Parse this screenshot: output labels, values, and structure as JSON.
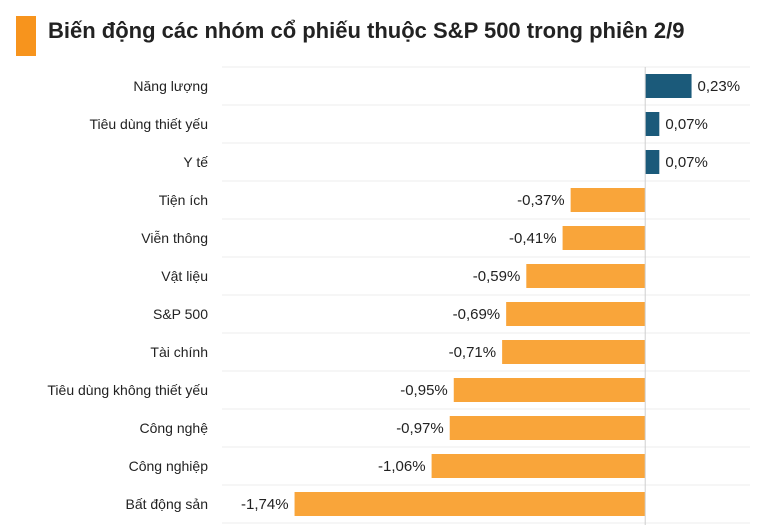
{
  "title": "Biến động các nhóm cổ phiếu thuộc S&P 500 trong phiên 2/9",
  "colors": {
    "accent": "#f7941d",
    "positive": "#1b5a7a",
    "negative": "#f9a53a"
  },
  "chart_data": {
    "type": "bar",
    "orientation": "horizontal",
    "title": "Biến động các nhóm cổ phiếu thuộc S&P 500 trong phiên 2/9",
    "xlabel": "",
    "ylabel": "",
    "grid": true,
    "categories": [
      "Năng lượng",
      "Tiêu dùng thiết yếu",
      "Y tế",
      "Tiện ích",
      "Viễn thông",
      "Vật liệu",
      "S&P 500",
      "Tài chính",
      "Tiêu dùng không thiết yếu",
      "Công nghệ",
      "Công nghiệp",
      "Bất động sản"
    ],
    "values": [
      0.23,
      0.07,
      0.07,
      -0.37,
      -0.41,
      -0.59,
      -0.69,
      -0.71,
      -0.95,
      -0.97,
      -1.06,
      -1.74
    ],
    "value_labels": [
      "0,23%",
      "0,07%",
      "0,07%",
      "-0,37%",
      "-0,41%",
      "-0,59%",
      "-0,69%",
      "-0,71%",
      "-0,95%",
      "-0,97%",
      "-1,06%",
      "-1,74%"
    ],
    "xlim": [
      -2.1,
      0.52
    ]
  }
}
